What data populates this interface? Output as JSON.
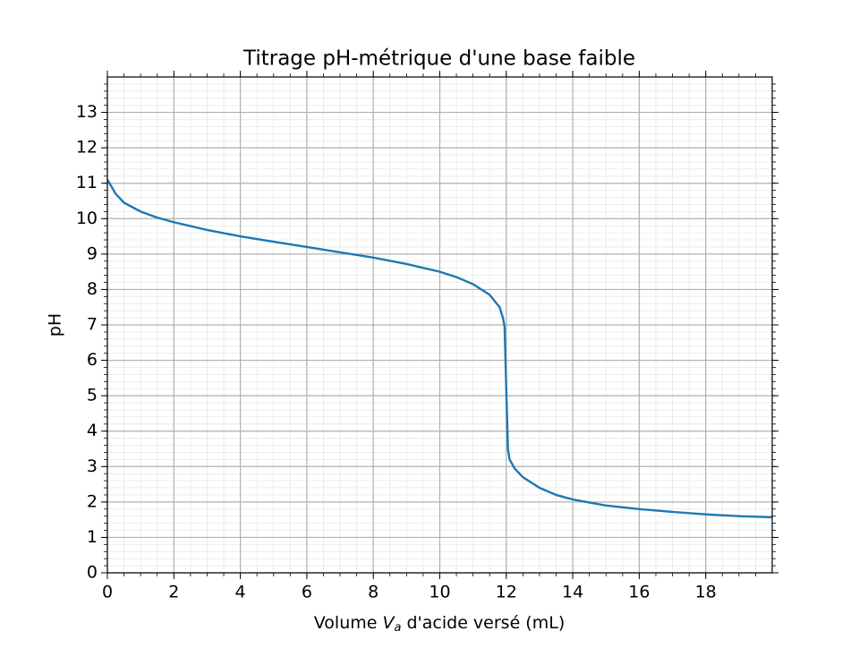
{
  "chart_data": {
    "type": "line",
    "title": "Titrage pH-métrique d'une base faible",
    "xlabel": {
      "parts": [
        "Volume ",
        "V",
        "a",
        " d'acide versé (mL)"
      ]
    },
    "ylabel": "pH",
    "x": [
      0,
      0.25,
      0.5,
      1,
      1.5,
      2,
      3,
      4,
      5,
      6,
      7,
      8,
      9,
      10,
      10.5,
      11,
      11.5,
      11.8,
      11.9,
      11.95,
      12.0,
      12.05,
      12.1,
      12.25,
      12.5,
      13,
      13.5,
      14,
      15,
      16,
      17,
      18,
      19,
      20
    ],
    "series": [
      {
        "name": "pH",
        "color": "#1f77b4",
        "values": [
          11.1,
          10.7,
          10.45,
          10.2,
          10.03,
          9.9,
          9.68,
          9.5,
          9.35,
          9.2,
          9.05,
          8.9,
          8.72,
          8.5,
          8.35,
          8.15,
          7.85,
          7.5,
          7.2,
          6.95,
          5.2,
          3.5,
          3.2,
          2.95,
          2.7,
          2.4,
          2.2,
          2.07,
          1.9,
          1.8,
          1.72,
          1.65,
          1.6,
          1.57
        ]
      }
    ],
    "xlim": [
      0,
      20
    ],
    "ylim": [
      0,
      14
    ],
    "xticks": [
      0,
      2,
      4,
      6,
      8,
      10,
      12,
      14,
      16,
      18
    ],
    "yticks": [
      0,
      1,
      2,
      3,
      4,
      5,
      6,
      7,
      8,
      9,
      10,
      11,
      12,
      13
    ],
    "grid": true,
    "minor_grid": true,
    "minor_step": {
      "x": 0.5,
      "y": 0.2
    }
  }
}
